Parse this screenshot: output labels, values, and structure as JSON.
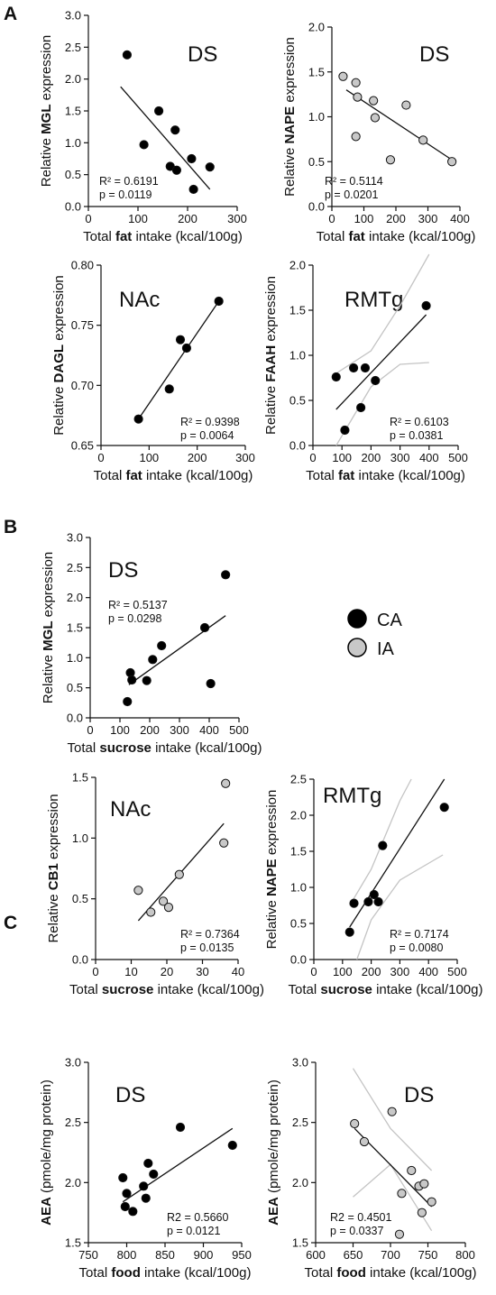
{
  "panel_letters": [
    "A",
    "B",
    "C"
  ],
  "legend": {
    "items": [
      {
        "label": "CA",
        "color": "#000000"
      },
      {
        "label": "IA",
        "color": "#c8c8c8"
      }
    ]
  },
  "chart_data": [
    {
      "type": "scatter",
      "panel": "A",
      "region": "DS",
      "xlabel": [
        "Total ",
        "fat",
        " intake (kcal/100g)"
      ],
      "ylabel": [
        "Relative ",
        "MGL",
        "  expression"
      ],
      "xlim": [
        0,
        300
      ],
      "ylim": [
        0,
        3.0
      ],
      "xticks": [
        0,
        100,
        200,
        300
      ],
      "yticks": [
        0.0,
        0.5,
        1.0,
        1.5,
        2.0,
        2.5,
        3.0
      ],
      "ydec": 1,
      "stats": [
        "R² = 0.6191",
        "p = 0.0119"
      ],
      "series": [
        {
          "name": "CA",
          "color": "#000000",
          "x": [
            78,
            112,
            142,
            165,
            178,
            175,
            208,
            212,
            245
          ],
          "y": [
            2.38,
            0.97,
            1.5,
            0.63,
            0.57,
            1.2,
            0.75,
            0.27,
            0.62
          ]
        }
      ],
      "fit": {
        "x": [
          65,
          245
        ],
        "y": [
          1.88,
          0.27
        ]
      }
    },
    {
      "type": "scatter",
      "panel": "A",
      "region": "DS",
      "xlabel": [
        "Total ",
        "fat",
        " intake (kcal/100g)"
      ],
      "ylabel": [
        "Relative ",
        "NAPE",
        " expression"
      ],
      "xlim": [
        0,
        400
      ],
      "ylim": [
        0,
        2.0
      ],
      "xticks": [
        0,
        100,
        200,
        300,
        400
      ],
      "yticks": [
        0.0,
        0.5,
        1.0,
        1.5,
        2.0
      ],
      "ydec": 1,
      "stats": [
        "R² = 0.5114",
        "p = 0.0201"
      ],
      "series": [
        {
          "name": "IA",
          "color": "#c8c8c8",
          "x": [
            35,
            75,
            80,
            75,
            130,
            135,
            183,
            232,
            285,
            375
          ],
          "y": [
            1.45,
            1.38,
            1.22,
            0.78,
            1.18,
            0.99,
            0.52,
            1.13,
            0.74,
            0.5
          ]
        }
      ],
      "fit": {
        "x": [
          45,
          375
        ],
        "y": [
          1.3,
          0.52
        ]
      }
    },
    {
      "type": "scatter",
      "panel": "A",
      "region": "NAc",
      "xlabel": [
        "Total ",
        "fat",
        " intake (kcal/100g)"
      ],
      "ylabel": [
        "Relative ",
        "DAGL",
        "  expression"
      ],
      "xlim": [
        0,
        300
      ],
      "ylim": [
        0.65,
        0.8
      ],
      "xticks": [
        0,
        100,
        200,
        300
      ],
      "yticks": [
        0.65,
        0.7,
        0.75,
        0.8
      ],
      "ydec": 2,
      "stats": [
        "R² = 0.9398",
        "p = 0.0064"
      ],
      "series": [
        {
          "name": "CA",
          "color": "#000000",
          "x": [
            78,
            142,
            165,
            178,
            245
          ],
          "y": [
            0.672,
            0.697,
            0.738,
            0.731,
            0.77
          ]
        }
      ],
      "fit": {
        "x": [
          78,
          245
        ],
        "y": [
          0.672,
          0.77
        ]
      }
    },
    {
      "type": "scatter",
      "panel": "A",
      "region": "RMTg",
      "xlabel": [
        "Total ",
        "fat",
        " intake (kcal/100g)"
      ],
      "ylabel": [
        "Relative ",
        "FAAH",
        " expression"
      ],
      "xlim": [
        0,
        500
      ],
      "ylim": [
        0,
        2.0
      ],
      "xticks": [
        0,
        100,
        200,
        300,
        400,
        500
      ],
      "yticks": [
        0.0,
        0.5,
        1.0,
        1.5,
        2.0
      ],
      "ydec": 1,
      "stats": [
        "R² = 0.6103",
        "p = 0.0381"
      ],
      "series": [
        {
          "name": "CA",
          "color": "#000000",
          "x": [
            80,
            110,
            140,
            165,
            180,
            215,
            390
          ],
          "y": [
            0.76,
            0.17,
            0.86,
            0.42,
            0.86,
            0.72,
            1.55
          ]
        }
      ],
      "fit": {
        "x": [
          80,
          390
        ],
        "y": [
          0.4,
          1.45
        ]
      },
      "ci": {
        "upper": {
          "x": [
            80,
            200,
            300,
            400
          ],
          "y": [
            0.8,
            1.05,
            1.55,
            2.12
          ]
        },
        "lower": {
          "x": [
            80,
            200,
            300,
            400
          ],
          "y": [
            0.0,
            0.65,
            0.9,
            0.92
          ]
        }
      }
    },
    {
      "type": "scatter",
      "panel": "B",
      "region": "DS",
      "xlabel": [
        "Total ",
        "sucrose",
        " intake (kcal/100g)"
      ],
      "ylabel": [
        "Relative ",
        "MGL",
        " expression"
      ],
      "xlim": [
        0,
        500
      ],
      "ylim": [
        0,
        3.0
      ],
      "xticks": [
        0,
        100,
        200,
        300,
        400,
        500
      ],
      "yticks": [
        0.0,
        0.5,
        1.0,
        1.5,
        2.0,
        2.5,
        3.0
      ],
      "ydec": 1,
      "stats": [
        "R² = 0.5137",
        "p = 0.0298"
      ],
      "series": [
        {
          "name": "CA",
          "color": "#000000",
          "x": [
            125,
            135,
            140,
            190,
            210,
            240,
            385,
            405,
            455
          ],
          "y": [
            0.27,
            0.75,
            0.63,
            0.62,
            0.97,
            1.2,
            1.5,
            0.57,
            2.38
          ]
        }
      ],
      "fit": {
        "x": [
          130,
          455
        ],
        "y": [
          0.55,
          1.7
        ]
      }
    },
    {
      "type": "scatter",
      "panel": "B",
      "region": "NAc",
      "xlabel": [
        "Total ",
        "sucrose",
        " intake (kcal/100g)"
      ],
      "ylabel": [
        "Relative ",
        "CB1",
        " expression"
      ],
      "xlim": [
        0,
        40
      ],
      "ylim": [
        0,
        1.5
      ],
      "xticks": [
        0,
        10,
        20,
        30,
        40
      ],
      "yticks": [
        0.0,
        0.5,
        1.0,
        1.5
      ],
      "ydec": 1,
      "stats": [
        "R² = 0.7364",
        "p = 0.0135"
      ],
      "series": [
        {
          "name": "IA",
          "color": "#c8c8c8",
          "x": [
            12,
            15.5,
            19,
            20.5,
            23.5,
            36,
            36.5
          ],
          "y": [
            0.57,
            0.39,
            0.48,
            0.43,
            0.7,
            0.96,
            1.45
          ]
        }
      ],
      "fit": {
        "x": [
          12,
          36
        ],
        "y": [
          0.32,
          1.12
        ]
      }
    },
    {
      "type": "scatter",
      "panel": "B",
      "region": "RMTg",
      "xlabel": [
        "Total ",
        "sucrose",
        " intake (kcal/100g)"
      ],
      "ylabel": [
        "Relative ",
        "NAPE",
        " expression"
      ],
      "xlim": [
        0,
        500
      ],
      "ylim": [
        0,
        2.5
      ],
      "xticks": [
        0,
        100,
        200,
        300,
        400,
        500
      ],
      "yticks": [
        0.0,
        0.5,
        1.0,
        1.5,
        2.0,
        2.5
      ],
      "ydec": 1,
      "stats": [
        "R² = 0.7174",
        "p = 0.0080"
      ],
      "series": [
        {
          "name": "CA",
          "color": "#000000",
          "x": [
            125,
            140,
            190,
            210,
            225,
            240,
            455
          ],
          "y": [
            0.38,
            0.78,
            0.8,
            0.9,
            0.8,
            1.58,
            2.11
          ]
        }
      ],
      "fit": {
        "x": [
          125,
          455
        ],
        "y": [
          0.45,
          2.5
        ]
      },
      "ci": {
        "upper": {
          "x": [
            125,
            200,
            300,
            340
          ],
          "y": [
            0.75,
            1.25,
            2.2,
            2.5
          ]
        },
        "lower": {
          "x": [
            150,
            200,
            300,
            450
          ],
          "y": [
            0.0,
            0.55,
            1.1,
            1.45
          ]
        }
      }
    },
    {
      "type": "scatter",
      "panel": "C",
      "region": "DS",
      "xlabel": [
        "Total ",
        "food",
        " intake (kcal/100g)"
      ],
      "ylabel": [
        "AEA",
        " (pmole/mg protein)",
        ""
      ],
      "xlim": [
        750,
        950
      ],
      "ylim": [
        1.5,
        3.0
      ],
      "xticks": [
        750,
        800,
        850,
        900,
        950
      ],
      "yticks": [
        1.5,
        2.0,
        2.5,
        3.0
      ],
      "ydec": 1,
      "stats": [
        "R2 = 0.5660",
        "p = 0.0121"
      ],
      "series": [
        {
          "name": "CA",
          "color": "#000000",
          "x": [
            795,
            798,
            800,
            808,
            822,
            825,
            828,
            835,
            870,
            938
          ],
          "y": [
            2.04,
            1.8,
            1.91,
            1.76,
            1.97,
            1.87,
            2.16,
            2.07,
            2.46,
            2.31
          ]
        }
      ],
      "fit": {
        "x": [
          795,
          938
        ],
        "y": [
          1.84,
          2.45
        ]
      }
    },
    {
      "type": "scatter",
      "panel": "C",
      "region": "DS",
      "xlabel": [
        "Total ",
        "food",
        " intake (kcal/100g)"
      ],
      "ylabel": [
        "AEA",
        " (pmole/mg protein)",
        ""
      ],
      "xlim": [
        600,
        800
      ],
      "ylim": [
        1.5,
        3.0
      ],
      "xticks": [
        600,
        650,
        700,
        750,
        800
      ],
      "yticks": [
        1.5,
        2.0,
        2.5,
        3.0
      ],
      "ydec": 1,
      "stats": [
        "R2 = 0.4501",
        "p = 0.0337"
      ],
      "series": [
        {
          "name": "IA",
          "color": "#c8c8c8",
          "x": [
            652,
            665,
            702,
            712,
            715,
            728,
            738,
            742,
            745,
            755
          ],
          "y": [
            2.49,
            2.34,
            2.59,
            1.57,
            1.91,
            2.1,
            1.97,
            1.75,
            1.99,
            1.84
          ]
        }
      ],
      "fit": {
        "x": [
          652,
          755
        ],
        "y": [
          2.45,
          1.8
        ]
      },
      "ci": {
        "upper": {
          "x": [
            650,
            700,
            755
          ],
          "y": [
            2.95,
            2.45,
            2.1
          ]
        },
        "lower": {
          "x": [
            650,
            700,
            755
          ],
          "y": [
            1.88,
            2.15,
            1.6
          ]
        }
      }
    }
  ]
}
